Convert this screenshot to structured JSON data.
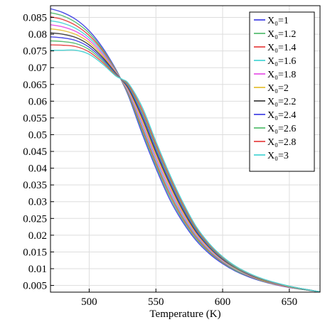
{
  "chart_data": {
    "type": "line",
    "title": "",
    "xlabel": "Temperature (K)",
    "ylabel": "",
    "xlim": [
      471,
      673
    ],
    "ylim": [
      0.003,
      0.0885
    ],
    "xticks": [
      "500",
      "550",
      "600",
      "650"
    ],
    "yticks": [
      "0.005",
      "0.01",
      "0.015",
      "0.02",
      "0.025",
      "0.03",
      "0.035",
      "0.04",
      "0.045",
      "0.05",
      "0.055",
      "0.06",
      "0.065",
      "0.07",
      "0.075",
      "0.08",
      "0.085"
    ],
    "grid": true,
    "legend_position": "top-right",
    "x": [
      471,
      480,
      490,
      500,
      510,
      520,
      525,
      530,
      540,
      550,
      560,
      570,
      580,
      590,
      600,
      610,
      620,
      630,
      640,
      650,
      660,
      673
    ],
    "series": [
      {
        "name": "X₀=1",
        "color": "#4a4ae6",
        "values": [
          0.0876,
          0.0865,
          0.0844,
          0.081,
          0.076,
          0.0695,
          0.0655,
          0.061,
          0.05,
          0.04,
          0.031,
          0.024,
          0.0185,
          0.0145,
          0.0115,
          0.0092,
          0.0075,
          0.0062,
          0.0052,
          0.0044,
          0.0038,
          0.0031
        ]
      },
      {
        "name": "X₀=1.2",
        "color": "#5bbf74",
        "values": [
          0.0864,
          0.0855,
          0.0835,
          0.0803,
          0.0755,
          0.0693,
          0.0656,
          0.0614,
          0.0508,
          0.0408,
          0.0318,
          0.0246,
          0.019,
          0.0149,
          0.0118,
          0.0094,
          0.0077,
          0.0063,
          0.0053,
          0.0045,
          0.0038,
          0.0031
        ]
      },
      {
        "name": "X₀=1.4",
        "color": "#e84a4a",
        "values": [
          0.0852,
          0.0844,
          0.0826,
          0.0796,
          0.0751,
          0.0691,
          0.0657,
          0.0618,
          0.0516,
          0.0416,
          0.0326,
          0.0252,
          0.0195,
          0.0152,
          0.012,
          0.0096,
          0.0078,
          0.0064,
          0.0053,
          0.0045,
          0.0039,
          0.0031
        ]
      },
      {
        "name": "X₀=1.6",
        "color": "#4fd6d6",
        "values": [
          0.084,
          0.0833,
          0.0817,
          0.0789,
          0.0746,
          0.0689,
          0.0658,
          0.0622,
          0.0524,
          0.0424,
          0.0334,
          0.0258,
          0.0199,
          0.0155,
          0.0122,
          0.0097,
          0.0079,
          0.0065,
          0.0054,
          0.0046,
          0.0039,
          0.0031
        ]
      },
      {
        "name": "X₀=1.8",
        "color": "#e85ae8",
        "values": [
          0.0828,
          0.0822,
          0.0808,
          0.0782,
          0.0741,
          0.0687,
          0.0659,
          0.0626,
          0.0532,
          0.0432,
          0.0342,
          0.0264,
          0.0203,
          0.0158,
          0.0124,
          0.0099,
          0.008,
          0.0066,
          0.0055,
          0.0046,
          0.0039,
          0.0031
        ]
      },
      {
        "name": "X₀=2",
        "color": "#e6c23c",
        "values": [
          0.0816,
          0.0811,
          0.0799,
          0.0775,
          0.0736,
          0.0685,
          0.066,
          0.063,
          0.054,
          0.044,
          0.035,
          0.027,
          0.0207,
          0.0161,
          0.0126,
          0.01,
          0.0081,
          0.0066,
          0.0055,
          0.0046,
          0.0039,
          0.0031
        ]
      },
      {
        "name": "X₀=2.2",
        "color": "#444444",
        "values": [
          0.0804,
          0.08,
          0.079,
          0.0768,
          0.0731,
          0.0683,
          0.0661,
          0.0634,
          0.0548,
          0.0448,
          0.0357,
          0.0276,
          0.0211,
          0.0164,
          0.0128,
          0.0102,
          0.0082,
          0.0067,
          0.0056,
          0.0047,
          0.0039,
          0.0031
        ]
      },
      {
        "name": "X₀=2.4",
        "color": "#4a4ae6",
        "values": [
          0.0792,
          0.0789,
          0.0781,
          0.0761,
          0.0726,
          0.0681,
          0.0662,
          0.0638,
          0.0556,
          0.0456,
          0.0364,
          0.0282,
          0.0215,
          0.0166,
          0.013,
          0.0103,
          0.0083,
          0.0068,
          0.0056,
          0.0047,
          0.004,
          0.0031
        ]
      },
      {
        "name": "X₀=2.6",
        "color": "#5bbf74",
        "values": [
          0.078,
          0.0778,
          0.0772,
          0.0754,
          0.0721,
          0.0679,
          0.0663,
          0.0642,
          0.0564,
          0.0464,
          0.0371,
          0.0288,
          0.0219,
          0.0169,
          0.0132,
          0.0104,
          0.0084,
          0.0068,
          0.0057,
          0.0047,
          0.004,
          0.0031
        ]
      },
      {
        "name": "X₀=2.8",
        "color": "#e84a4a",
        "values": [
          0.0768,
          0.0767,
          0.0763,
          0.0747,
          0.0716,
          0.0677,
          0.0664,
          0.0646,
          0.0572,
          0.0472,
          0.0378,
          0.0294,
          0.0223,
          0.0172,
          0.0134,
          0.0106,
          0.0085,
          0.0069,
          0.0057,
          0.0048,
          0.004,
          0.0031
        ]
      },
      {
        "name": "X₀=3",
        "color": "#4fd6d6",
        "values": [
          0.0752,
          0.0752,
          0.0752,
          0.074,
          0.0711,
          0.0675,
          0.0665,
          0.065,
          0.058,
          0.048,
          0.0385,
          0.03,
          0.0227,
          0.0175,
          0.0136,
          0.0107,
          0.0086,
          0.007,
          0.0058,
          0.0048,
          0.004,
          0.0031
        ]
      }
    ]
  }
}
